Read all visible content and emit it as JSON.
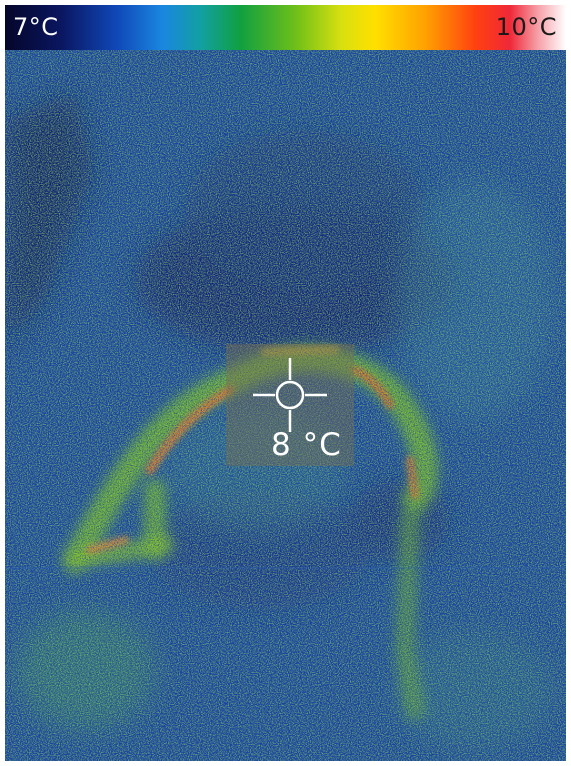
{
  "scale": {
    "min_label": "7°C",
    "max_label": "10°C"
  },
  "spot": {
    "temperature_label": "8 °C"
  },
  "colors": {
    "cold": "#0a1660",
    "background": "#1340a8",
    "mid": "#4aa820",
    "warm": "#ff6a20",
    "hot": "#ffffff"
  }
}
